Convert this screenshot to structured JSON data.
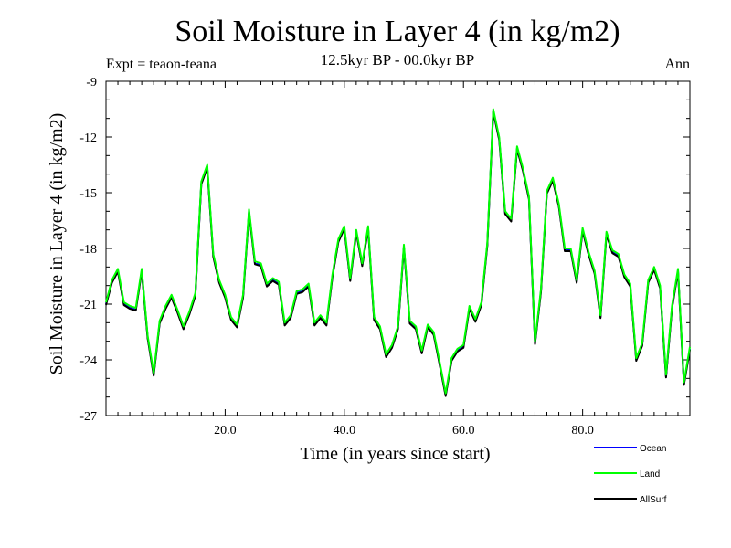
{
  "header": {
    "title": "Soil Moisture in Layer 4 (in kg/m2)",
    "subtitle": "12.5kyr BP - 00.0kyr BP",
    "expt": "Expt = teaon-teana",
    "season": "Ann"
  },
  "colors": {
    "ocean": "#0000ff",
    "land": "#00ff00",
    "allsurf": "#000000"
  },
  "chart_data": {
    "type": "line",
    "title": "Soil Moisture in Layer 4 (in kg/m2)",
    "xlabel": "Time (in years since start)",
    "ylabel": "Soil Moisture in Layer 4 (in kg/m2)",
    "xlim": [
      0,
      98
    ],
    "ylim": [
      -27,
      -9
    ],
    "xticks": [
      20,
      40,
      60,
      80
    ],
    "xtick_labels": [
      "20.0",
      "40.0",
      "60.0",
      "80.0"
    ],
    "yticks": [
      -9,
      -12,
      -15,
      -18,
      -21,
      -24,
      -27
    ],
    "ytick_labels": [
      "-9",
      "-12",
      "-15",
      "-18",
      "-21",
      "-24",
      "-27"
    ],
    "grid": false,
    "legend_position": "bottom-right",
    "x": [
      0,
      1,
      2,
      3,
      4,
      5,
      6,
      7,
      8,
      9,
      10,
      11,
      12,
      13,
      14,
      15,
      16,
      17,
      18,
      19,
      20,
      21,
      22,
      23,
      24,
      25,
      26,
      27,
      28,
      29,
      30,
      31,
      32,
      33,
      34,
      35,
      36,
      37,
      38,
      39,
      40,
      41,
      42,
      43,
      44,
      45,
      46,
      47,
      48,
      49,
      50,
      51,
      52,
      53,
      54,
      55,
      56,
      57,
      58,
      59,
      60,
      61,
      62,
      63,
      64,
      65,
      66,
      67,
      68,
      69,
      70,
      71,
      72,
      73,
      74,
      75,
      76,
      77,
      78,
      79,
      80,
      81,
      82,
      83,
      84,
      85,
      86,
      87,
      88,
      89,
      90,
      91,
      92,
      93,
      94,
      95,
      96,
      97,
      98
    ],
    "series": [
      {
        "name": "Ocean",
        "values": [
          -21.0,
          -19.8,
          -19.2,
          -21.0,
          -21.2,
          -21.3,
          -19.2,
          -22.8,
          -24.8,
          -22.0,
          -21.2,
          -20.6,
          -21.4,
          -22.3,
          -21.5,
          -20.5,
          -14.5,
          -13.6,
          -18.4,
          -19.8,
          -20.6,
          -21.8,
          -22.2,
          -20.6,
          -16.0,
          -18.8,
          -18.9,
          -20.0,
          -19.7,
          -19.9,
          -22.1,
          -21.7,
          -20.4,
          -20.3,
          -20.0,
          -22.1,
          -21.7,
          -22.1,
          -19.5,
          -17.6,
          -16.9,
          -19.7,
          -17.1,
          -18.9,
          -16.9,
          -21.8,
          -22.3,
          -23.8,
          -23.3,
          -22.3,
          -17.9,
          -22.0,
          -22.3,
          -23.6,
          -22.2,
          -22.6,
          -24.2,
          -25.9,
          -24.0,
          -23.5,
          -23.3,
          -21.2,
          -21.9,
          -21.0,
          -17.8,
          -10.6,
          -12.1,
          -16.1,
          -16.5,
          -12.6,
          -13.8,
          -15.3,
          -23.1,
          -20.3,
          -15.0,
          -14.3,
          -15.7,
          -18.1,
          -18.1,
          -19.8,
          -17.0,
          -18.3,
          -19.3,
          -21.7,
          -17.2,
          -18.2,
          -18.4,
          -19.5,
          -20.0,
          -24.0,
          -23.2,
          -19.8,
          -19.1,
          -20.1,
          -24.9,
          -21.2,
          -19.2,
          -25.3,
          -23.4
        ]
      },
      {
        "name": "Land",
        "values": [
          -20.9,
          -19.7,
          -19.1,
          -20.9,
          -21.1,
          -21.2,
          -19.1,
          -22.7,
          -24.7,
          -21.9,
          -21.1,
          -20.5,
          -21.3,
          -22.2,
          -21.4,
          -20.4,
          -14.4,
          -13.5,
          -18.3,
          -19.7,
          -20.5,
          -21.7,
          -22.1,
          -20.5,
          -15.9,
          -18.7,
          -18.8,
          -19.9,
          -19.6,
          -19.8,
          -22.0,
          -21.6,
          -20.3,
          -20.2,
          -19.9,
          -22.0,
          -21.6,
          -22.0,
          -19.4,
          -17.5,
          -16.8,
          -19.6,
          -17.0,
          -18.8,
          -16.8,
          -21.7,
          -22.2,
          -23.7,
          -23.2,
          -22.2,
          -17.8,
          -21.9,
          -22.2,
          -23.5,
          -22.1,
          -22.5,
          -24.1,
          -25.8,
          -23.9,
          -23.4,
          -23.2,
          -21.1,
          -21.8,
          -20.9,
          -17.7,
          -10.5,
          -12.0,
          -16.0,
          -16.4,
          -12.5,
          -13.7,
          -15.2,
          -23.0,
          -20.2,
          -14.9,
          -14.2,
          -15.6,
          -18.0,
          -18.0,
          -19.7,
          -16.9,
          -18.2,
          -19.2,
          -21.6,
          -17.1,
          -18.1,
          -18.3,
          -19.4,
          -19.9,
          -23.9,
          -23.1,
          -19.7,
          -19.0,
          -20.0,
          -24.8,
          -21.1,
          -19.1,
          -25.2,
          -23.3
        ]
      },
      {
        "name": "AllSurf",
        "values": [
          -21.0,
          -19.8,
          -19.2,
          -21.0,
          -21.2,
          -21.3,
          -19.2,
          -22.8,
          -24.8,
          -22.0,
          -21.2,
          -20.6,
          -21.4,
          -22.3,
          -21.5,
          -20.5,
          -14.5,
          -13.6,
          -18.4,
          -19.8,
          -20.6,
          -21.8,
          -22.2,
          -20.6,
          -16.0,
          -18.8,
          -18.9,
          -20.0,
          -19.7,
          -19.9,
          -22.1,
          -21.7,
          -20.4,
          -20.3,
          -20.0,
          -22.1,
          -21.7,
          -22.1,
          -19.5,
          -17.6,
          -16.9,
          -19.7,
          -17.1,
          -18.9,
          -16.9,
          -21.8,
          -22.3,
          -23.8,
          -23.3,
          -22.3,
          -17.9,
          -22.0,
          -22.3,
          -23.6,
          -22.2,
          -22.6,
          -24.2,
          -25.9,
          -24.0,
          -23.5,
          -23.3,
          -21.2,
          -21.9,
          -21.0,
          -17.8,
          -10.6,
          -12.1,
          -16.1,
          -16.5,
          -12.6,
          -13.8,
          -15.3,
          -23.1,
          -20.3,
          -15.0,
          -14.3,
          -15.7,
          -18.1,
          -18.1,
          -19.8,
          -17.0,
          -18.3,
          -19.3,
          -21.7,
          -17.2,
          -18.2,
          -18.4,
          -19.5,
          -20.0,
          -24.0,
          -23.2,
          -19.8,
          -19.1,
          -20.1,
          -24.9,
          -21.2,
          -19.2,
          -25.3,
          -23.4
        ]
      }
    ],
    "legend": [
      "Ocean",
      "Land",
      "AllSurf"
    ]
  }
}
